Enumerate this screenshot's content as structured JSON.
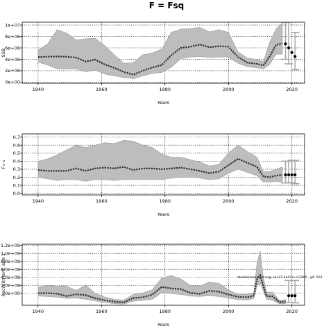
{
  "title": "F = Fsq",
  "colors": {
    "band": "#bdbdbd",
    "band_edge": "#9a9a9a",
    "line": "#2b2b2b",
    "grid": "#000000",
    "errorbar": "#a6a6a6"
  },
  "chart_data": [
    {
      "type": "line",
      "ylabel": "SSB",
      "xlabel": "Years",
      "xlim": [
        1935,
        2024
      ],
      "ylim": [
        -200000,
        10500000
      ],
      "xticks": [
        1940,
        1960,
        1980,
        2000,
        2020
      ],
      "xtick_labels": [
        "1940",
        "1960",
        "1980",
        "2000",
        "2020"
      ],
      "yticks": [
        0,
        2000000,
        4000000,
        6000000,
        8000000,
        10000000
      ],
      "ytick_labels": [
        "0e+00",
        "2e+06",
        "4e+06",
        "6e+06",
        "8e+06",
        "1e+07"
      ],
      "grid": true,
      "x": [
        1940,
        1943,
        1946,
        1949,
        1952,
        1955,
        1958,
        1961,
        1964,
        1967,
        1970,
        1973,
        1976,
        1979,
        1982,
        1985,
        1988,
        1991,
        1994,
        1997,
        2000,
        2003,
        2006,
        2009,
        2011,
        2013,
        2015,
        2017
      ],
      "series": [
        {
          "role": "median",
          "values": [
            4400000,
            4450000,
            4500000,
            4450000,
            4300000,
            3600000,
            3950000,
            3100000,
            2500000,
            1800000,
            1300000,
            2000000,
            2550000,
            3000000,
            4700000,
            6000000,
            6200000,
            6600000,
            6100000,
            6300000,
            6200000,
            4400000,
            3400000,
            3200000,
            2900000,
            4500000,
            6500000,
            6800000
          ]
        },
        {
          "role": "lower",
          "values": [
            3500000,
            3000000,
            2300000,
            2300000,
            2300000,
            1800000,
            2100000,
            1400000,
            1100000,
            800000,
            600000,
            1100000,
            1500000,
            1700000,
            2600000,
            4100000,
            4400000,
            4500000,
            4300000,
            4400000,
            4400000,
            3300000,
            2700000,
            2500000,
            2300000,
            3100000,
            4900000,
            4900000
          ]
        },
        {
          "role": "upper",
          "values": [
            5600000,
            6700000,
            9200000,
            8600000,
            7400000,
            7600000,
            7700000,
            6400000,
            4800000,
            3300000,
            3400000,
            4800000,
            5100000,
            5800000,
            8700000,
            9300000,
            9400000,
            9600000,
            8800000,
            9200000,
            8700000,
            5300000,
            4200000,
            4000000,
            3600000,
            7000000,
            9300000,
            10400000
          ]
        }
      ],
      "projection": {
        "x": [
          2018,
          2019,
          2020,
          2021
        ],
        "values": [
          6700000,
          6000000,
          5200000,
          4500000
        ],
        "errorbars": [
          {
            "x": 2018,
            "low": 4000000,
            "high": 10500000
          },
          {
            "x": 2019,
            "low": 3200000,
            "high": 10600000
          },
          {
            "x": 2021,
            "low": 2200000,
            "high": 8700000
          }
        ]
      }
    },
    {
      "type": "line",
      "ylabel": "F₄₋₈",
      "xlabel": "Years",
      "xlim": [
        1935,
        2024
      ],
      "ylim": [
        -0.02,
        0.74
      ],
      "xticks": [
        1940,
        1960,
        1980,
        2000,
        2020
      ],
      "xtick_labels": [
        "1940",
        "1960",
        "1980",
        "2000",
        "2020"
      ],
      "yticks": [
        0.0,
        0.1,
        0.2,
        0.3,
        0.4,
        0.5,
        0.6,
        0.7
      ],
      "ytick_labels": [
        "0.0",
        "0.1",
        "0.2",
        "0.3",
        "0.4",
        "0.5",
        "0.6",
        "0.7"
      ],
      "grid": true,
      "x": [
        1940,
        1943,
        1946,
        1949,
        1952,
        1955,
        1958,
        1961,
        1964,
        1967,
        1970,
        1973,
        1976,
        1979,
        1982,
        1985,
        1988,
        1991,
        1994,
        1997,
        2000,
        2003,
        2006,
        2009,
        2011,
        2013,
        2015,
        2017
      ],
      "series": [
        {
          "role": "median",
          "values": [
            0.29,
            0.28,
            0.28,
            0.28,
            0.31,
            0.28,
            0.31,
            0.32,
            0.31,
            0.33,
            0.29,
            0.31,
            0.31,
            0.3,
            0.31,
            0.32,
            0.3,
            0.28,
            0.25,
            0.27,
            0.35,
            0.43,
            0.38,
            0.33,
            0.21,
            0.2,
            0.22,
            0.23
          ]
        },
        {
          "role": "lower",
          "values": [
            0.2,
            0.18,
            0.16,
            0.17,
            0.17,
            0.15,
            0.17,
            0.17,
            0.16,
            0.17,
            0.17,
            0.17,
            0.17,
            0.17,
            0.19,
            0.2,
            0.2,
            0.19,
            0.17,
            0.18,
            0.25,
            0.3,
            0.26,
            0.22,
            0.14,
            0.14,
            0.15,
            0.14
          ]
        },
        {
          "role": "upper",
          "values": [
            0.4,
            0.43,
            0.48,
            0.54,
            0.6,
            0.57,
            0.6,
            0.63,
            0.62,
            0.66,
            0.65,
            0.6,
            0.57,
            0.49,
            0.45,
            0.45,
            0.42,
            0.39,
            0.34,
            0.36,
            0.5,
            0.6,
            0.52,
            0.45,
            0.27,
            0.27,
            0.3,
            0.33
          ]
        }
      ],
      "projection": {
        "x": [
          2018,
          2019,
          2020,
          2021
        ],
        "values": [
          0.23,
          0.23,
          0.23,
          0.23
        ],
        "errorbars": [
          {
            "x": 2018,
            "low": 0.13,
            "high": 0.4
          },
          {
            "x": 2019,
            "low": 0.13,
            "high": 0.4
          },
          {
            "x": 2020,
            "low": 0.13,
            "high": 0.41
          },
          {
            "x": 2021,
            "low": 0.12,
            "high": 0.41
          }
        ]
      }
    },
    {
      "type": "line",
      "ylabel": "Recruitment, age 1",
      "xlabel": "Years",
      "xlim": [
        1935,
        2024
      ],
      "ylim": [
        -300000000,
        1230000000
      ],
      "xticks": [
        1940,
        1960,
        1980,
        2000,
        2020
      ],
      "xtick_labels": [
        "1940",
        "1960",
        "1980",
        "2000",
        "2020"
      ],
      "yticks": [
        0,
        200000000,
        400000000,
        600000000,
        800000000,
        1000000000,
        1200000000
      ],
      "ytick_labels": [
        ".0e+00",
        "2.0e+08",
        "4.0e+08",
        "6.0e+08",
        "8.0e+08",
        "1.0e+09",
        "1.2e+09"
      ],
      "grid": true,
      "x": [
        1940,
        1943,
        1946,
        1949,
        1952,
        1955,
        1958,
        1961,
        1964,
        1967,
        1970,
        1973,
        1976,
        1979,
        1982,
        1985,
        1988,
        1991,
        1994,
        1997,
        2000,
        2003,
        2006,
        2008,
        2009,
        2010,
        2011,
        2012,
        2014,
        2016,
        2018
      ],
      "series": [
        {
          "role": "median",
          "values": [
            -1000000,
            5000000,
            -10000000,
            -70000000,
            -25000000,
            -45000000,
            -125000000,
            -175000000,
            -210000000,
            -230000000,
            -120000000,
            -100000000,
            -35000000,
            160000000,
            120000000,
            105000000,
            10000000,
            -15000000,
            60000000,
            40000000,
            -30000000,
            -90000000,
            -100000000,
            -60000000,
            350000000,
            450000000,
            180000000,
            -70000000,
            -80000000,
            -220000000,
            -210000000
          ]
        },
        {
          "role": "lower",
          "values": [
            -70000000,
            -80000000,
            -100000000,
            -130000000,
            -120000000,
            -150000000,
            -190000000,
            -230000000,
            -260000000,
            -270000000,
            -200000000,
            -180000000,
            -150000000,
            20000000,
            -10000000,
            -30000000,
            -70000000,
            -80000000,
            -60000000,
            -80000000,
            -120000000,
            -160000000,
            -170000000,
            -130000000,
            180000000,
            250000000,
            60000000,
            -150000000,
            -180000000,
            -260000000,
            -260000000
          ]
        },
        {
          "role": "upper",
          "values": [
            150000000,
            200000000,
            180000000,
            180000000,
            70000000,
            210000000,
            0,
            -90000000,
            -150000000,
            -170000000,
            -30000000,
            10000000,
            90000000,
            380000000,
            450000000,
            360000000,
            200000000,
            180000000,
            280000000,
            250000000,
            90000000,
            -30000000,
            -20000000,
            0,
            750000000,
            1060000000,
            390000000,
            30000000,
            30000000,
            -180000000,
            -160000000
          ]
        }
      ],
      "projection": {
        "x": [
          2019,
          2020,
          2021
        ],
        "values": [
          -60000000,
          -60000000,
          -60000000
        ],
        "errorbars": [
          {
            "x": 2019,
            "low": -230000000,
            "high": 320000000
          },
          {
            "x": 2021,
            "low": -240000000,
            "high": 320000000
          }
        ]
      },
      "annotation": "stockassessment.org, sel.27.3a47d, r11200 , git: 503"
    }
  ]
}
